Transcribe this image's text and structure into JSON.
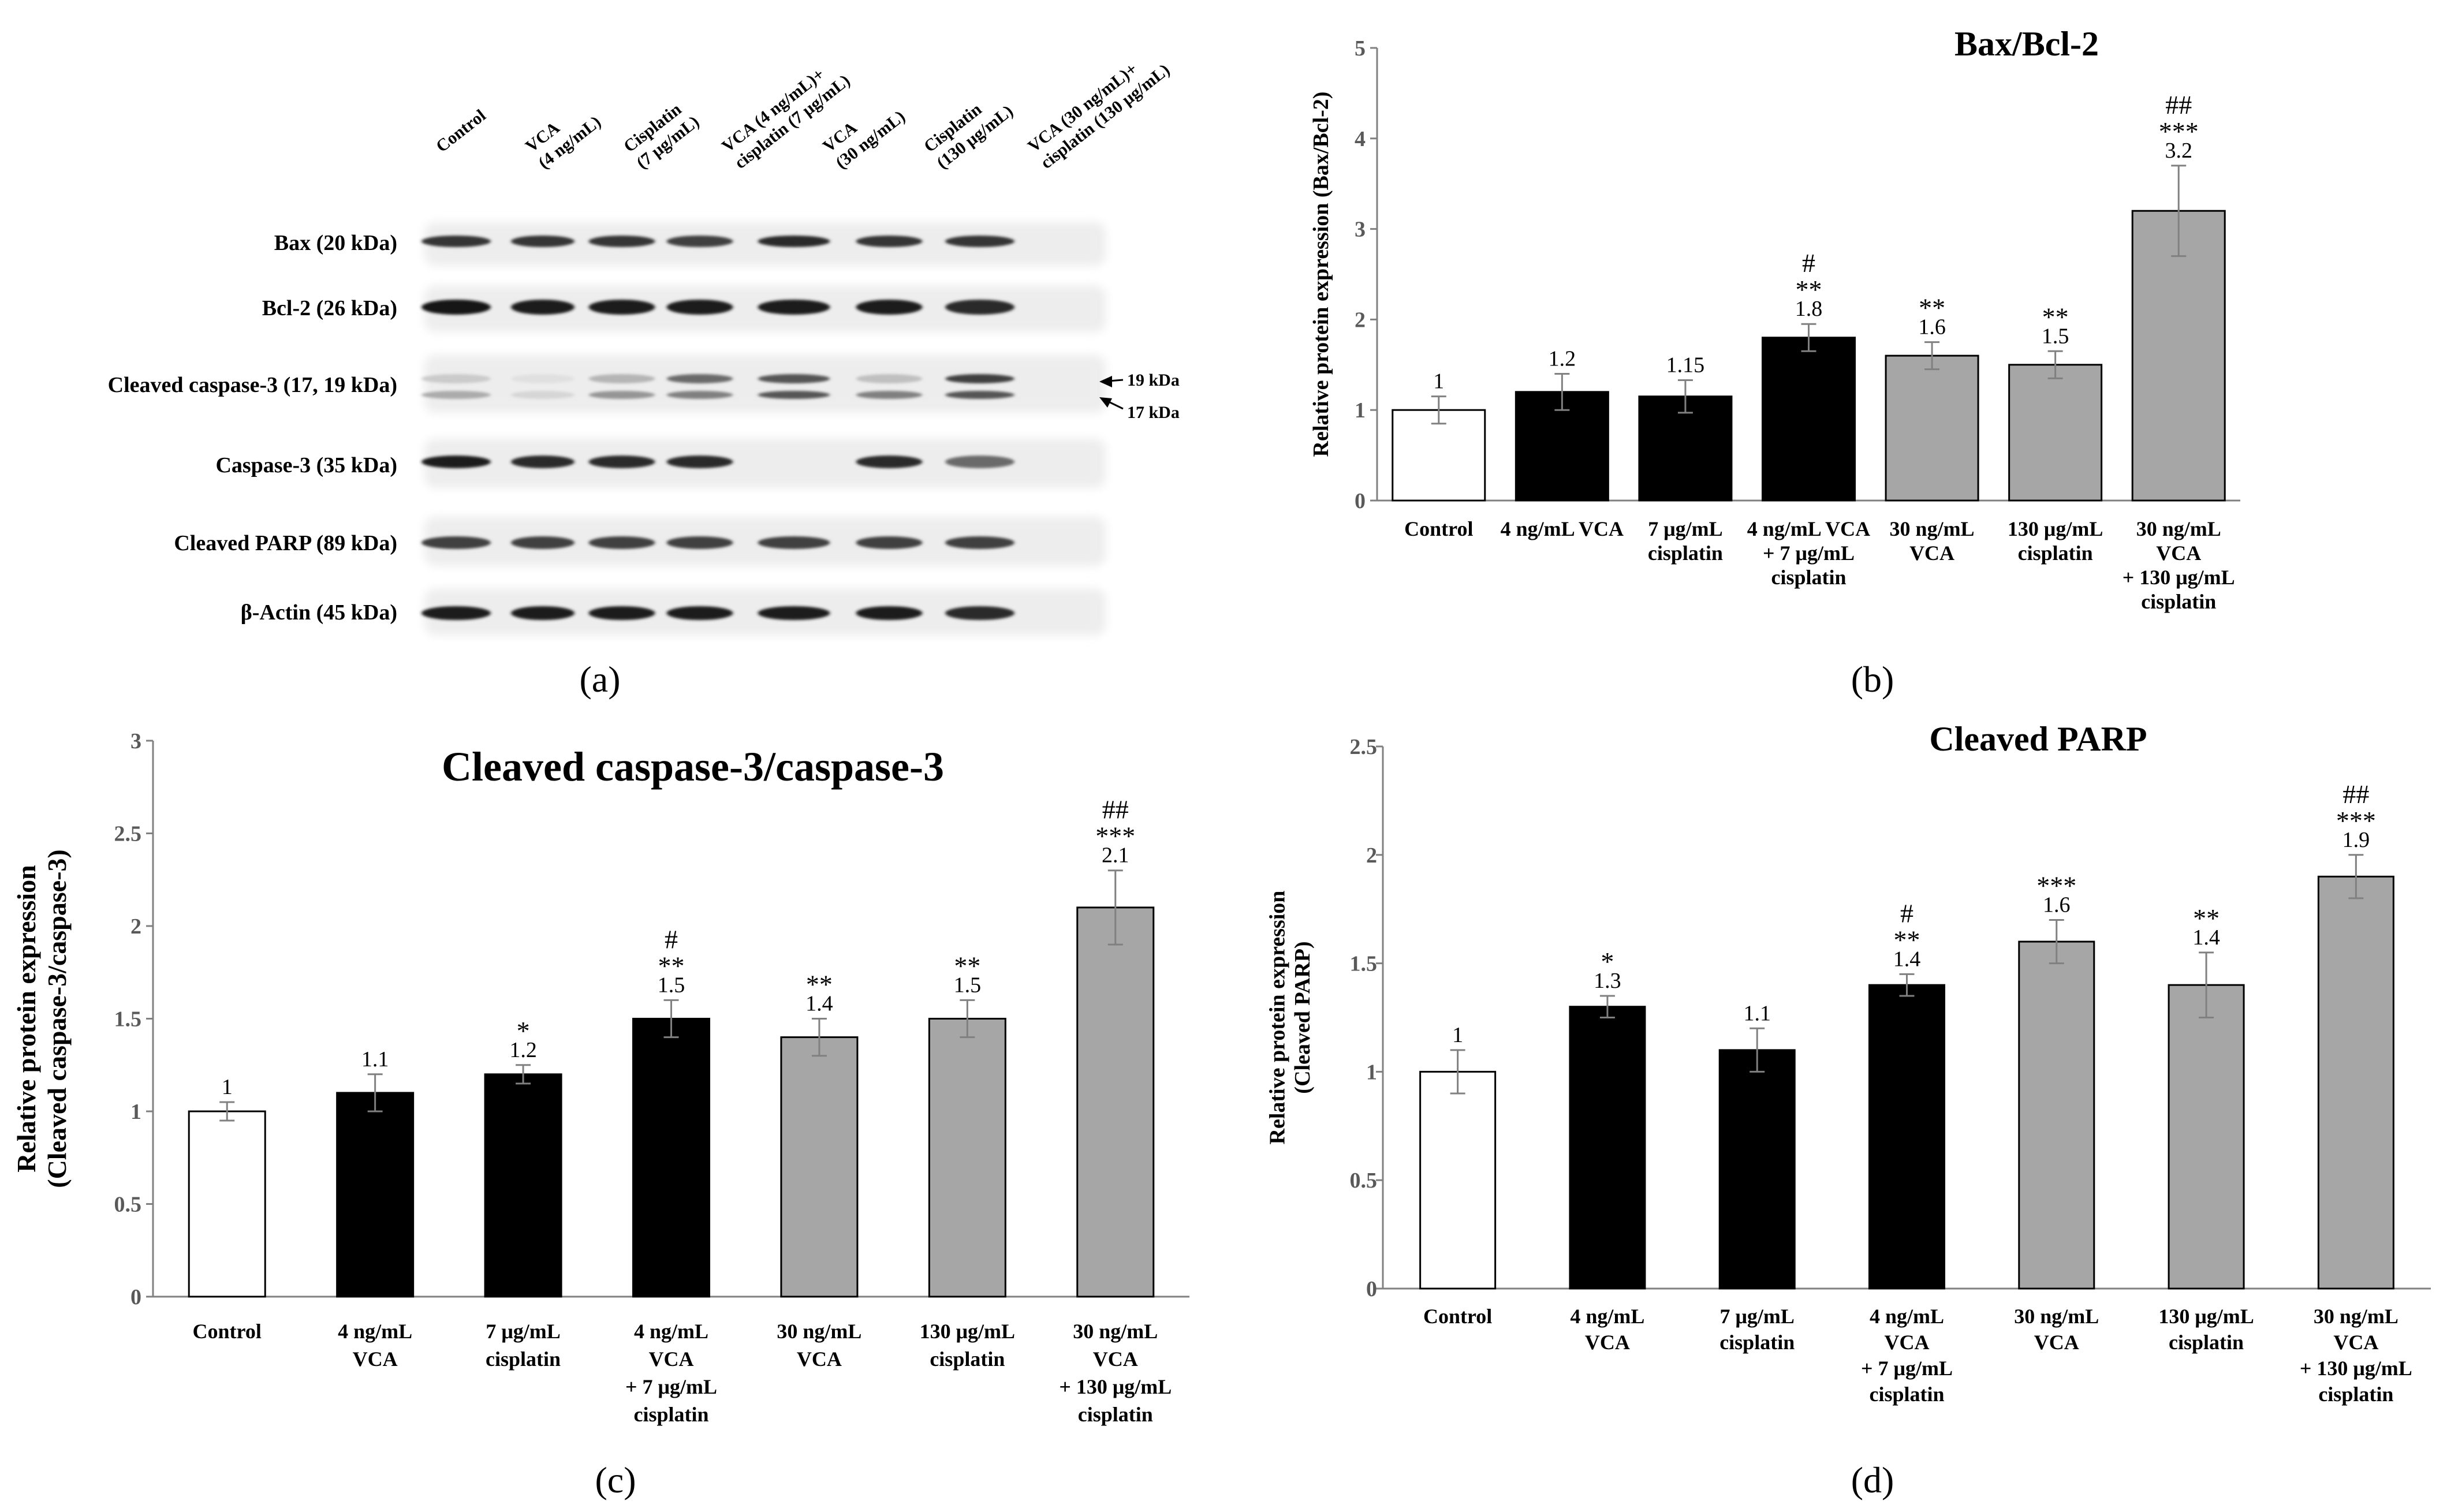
{
  "panel_labels": {
    "a": "(a)",
    "b": "(b)",
    "c": "(c)",
    "d": "(d)"
  },
  "blot": {
    "lanes": [
      [
        "Control"
      ],
      [
        "VCA",
        "(4 ng/mL)"
      ],
      [
        "Cisplatin",
        "(7 μg/mL)"
      ],
      [
        "VCA (4 ng/mL)+",
        "cisplatin (7 μg/mL)"
      ],
      [
        "VCA",
        "(30 ng/mL)"
      ],
      [
        "Cisplatin",
        "(130 μg/mL)"
      ],
      [
        "VCA (30 ng/mL)+",
        "cisplatin (130 μg/mL)"
      ]
    ],
    "proteins": [
      "Bax (20 kDa)",
      "Bcl-2 (26 kDa)",
      "Cleaved caspase-3 (17, 19 kDa)",
      "Caspase-3 (35 kDa)",
      "Cleaved PARP (89 kDa)",
      "β-Actin (45 kDa)"
    ],
    "markers": [
      "19 kDa",
      "17 kDa"
    ],
    "band_intensity": {
      "bax": [
        0.85,
        0.85,
        0.85,
        0.8,
        0.9,
        0.85,
        0.85
      ],
      "bcl2": [
        1,
        0.95,
        0.95,
        0.95,
        0.95,
        0.95,
        0.9
      ],
      "cc3_upper": [
        0.15,
        0.05,
        0.25,
        0.6,
        0.7,
        0.2,
        0.8
      ],
      "cc3_lower": [
        0.3,
        0.1,
        0.4,
        0.5,
        0.7,
        0.5,
        0.7
      ],
      "casp3": [
        0.95,
        0.9,
        0.9,
        0.9,
        0,
        0.9,
        0.6
      ],
      "parp": [
        0.8,
        0.8,
        0.8,
        0.8,
        0.8,
        0.8,
        0.8
      ],
      "actin": [
        0.95,
        0.95,
        0.95,
        0.95,
        0.95,
        0.95,
        0.9
      ]
    }
  },
  "chart_data": [
    {
      "id": "b",
      "type": "bar",
      "title": "Bax/Bcl-2",
      "ylabel": [
        "Relative protein expression (Bax/Bcl-2)"
      ],
      "ylim": [
        0,
        5
      ],
      "yticks": [
        0,
        1,
        2,
        3,
        4,
        5
      ],
      "ytick_labels": [
        "0",
        "1",
        "2",
        "3",
        "4",
        "5"
      ],
      "categories": [
        [
          "Control"
        ],
        [
          "4 ng/mL VCA"
        ],
        [
          "7 μg/mL",
          "cisplatin"
        ],
        [
          "4 ng/mL VCA",
          "+ 7 μg/mL",
          "cisplatin"
        ],
        [
          "30 ng/mL",
          "VCA"
        ],
        [
          "130 μg/mL",
          "cisplatin"
        ],
        [
          "30 ng/mL",
          "VCA",
          "+ 130 μg/mL",
          "cisplatin"
        ]
      ],
      "values": [
        1,
        1.2,
        1.15,
        1.8,
        1.6,
        1.5,
        3.2
      ],
      "value_labels": [
        "1",
        "1.2",
        "1.15",
        "1.8",
        "1.6",
        "1.5",
        "3.2"
      ],
      "errors": [
        0.15,
        0.2,
        0.18,
        0.15,
        0.15,
        0.15,
        0.5
      ],
      "fills": [
        "#ffffff",
        "#000000",
        "#000000",
        "#000000",
        "#a6a6a6",
        "#a6a6a6",
        "#a6a6a6"
      ],
      "significance": [
        [],
        [],
        [],
        [
          "#",
          "**"
        ],
        [
          "**"
        ],
        [
          "**"
        ],
        [
          "##",
          "***"
        ]
      ]
    },
    {
      "id": "c",
      "type": "bar",
      "title": "Cleaved caspase-3/caspase-3",
      "ylabel": [
        "Relative protein expression",
        "(Cleaved caspase-3/caspase-3)"
      ],
      "ylim": [
        0,
        3
      ],
      "yticks": [
        0,
        0.5,
        1,
        1.5,
        2,
        2.5,
        3
      ],
      "ytick_labels": [
        "0",
        "0.5",
        "1",
        "1.5",
        "2",
        "2.5",
        "3"
      ],
      "categories": [
        [
          "Control"
        ],
        [
          "4 ng/mL",
          "VCA"
        ],
        [
          "7 μg/mL",
          "cisplatin"
        ],
        [
          "4 ng/mL",
          "VCA",
          "+ 7 μg/mL",
          "cisplatin"
        ],
        [
          "30 ng/mL",
          "VCA"
        ],
        [
          "130 μg/mL",
          "cisplatin"
        ],
        [
          "30 ng/mL",
          "VCA",
          "+ 130 μg/mL",
          "cisplatin"
        ]
      ],
      "values": [
        1,
        1.1,
        1.2,
        1.5,
        1.4,
        1.5,
        2.1
      ],
      "value_labels": [
        "1",
        "1.1",
        "1.2",
        "1.5",
        "1.4",
        "1.5",
        "2.1"
      ],
      "errors": [
        0.05,
        0.1,
        0.05,
        0.1,
        0.1,
        0.1,
        0.2
      ],
      "fills": [
        "#ffffff",
        "#000000",
        "#000000",
        "#000000",
        "#a6a6a6",
        "#a6a6a6",
        "#a6a6a6"
      ],
      "significance": [
        [],
        [],
        [
          "*"
        ],
        [
          "#",
          "**"
        ],
        [
          "**"
        ],
        [
          "**"
        ],
        [
          "##",
          "***"
        ]
      ]
    },
    {
      "id": "d",
      "type": "bar",
      "title": "Cleaved PARP",
      "ylabel": [
        "Relative protein expression",
        "(Cleaved PARP)"
      ],
      "ylim": [
        0,
        2.5
      ],
      "yticks": [
        0,
        0.5,
        1,
        1.5,
        2,
        2.5
      ],
      "ytick_labels": [
        "0",
        "0.5",
        "1",
        "1.5",
        "2",
        "2.5"
      ],
      "categories": [
        [
          "Control"
        ],
        [
          "4 ng/mL",
          "VCA"
        ],
        [
          "7 μg/mL",
          "cisplatin"
        ],
        [
          "4 ng/mL",
          "VCA",
          "+ 7 μg/mL",
          "cisplatin"
        ],
        [
          "30 ng/mL",
          "VCA"
        ],
        [
          "130 μg/mL",
          "cisplatin"
        ],
        [
          "30 ng/mL",
          "VCA",
          "+ 130 μg/mL",
          "cisplatin"
        ]
      ],
      "values": [
        1,
        1.3,
        1.1,
        1.4,
        1.6,
        1.4,
        1.9
      ],
      "value_labels": [
        "1",
        "1.3",
        "1.1",
        "1.4",
        "1.6",
        "1.4",
        "1.9"
      ],
      "errors": [
        0.1,
        0.05,
        0.1,
        0.05,
        0.1,
        0.15,
        0.1
      ],
      "fills": [
        "#ffffff",
        "#000000",
        "#000000",
        "#000000",
        "#a6a6a6",
        "#a6a6a6",
        "#a6a6a6"
      ],
      "significance": [
        [],
        [
          "*"
        ],
        [],
        [
          "#",
          "**"
        ],
        [
          "***"
        ],
        [
          "**"
        ],
        [
          "##",
          "***"
        ]
      ]
    }
  ]
}
